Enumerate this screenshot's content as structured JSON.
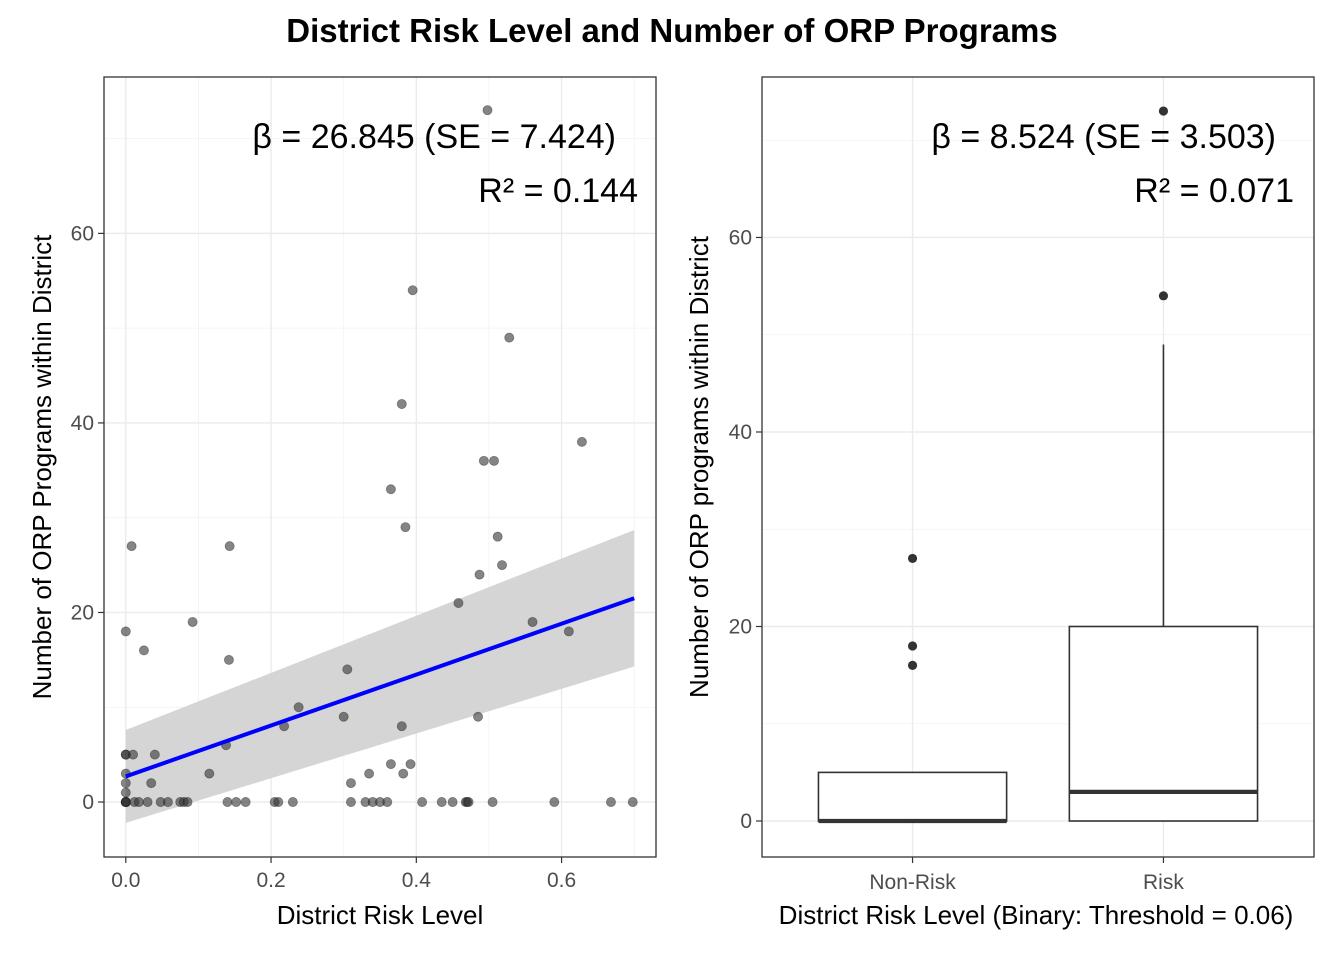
{
  "figure": {
    "title": "District Risk Level and Number of ORP Programs"
  },
  "chart_data": [
    {
      "type": "scatter",
      "xlabel": "District Risk Level",
      "ylabel": "Number of ORP Programs within District",
      "xlim": [
        -0.03,
        0.73
      ],
      "ylim": [
        -5.8,
        76.5
      ],
      "xticks": [
        0.0,
        0.2,
        0.4,
        0.6
      ],
      "xtick_labels": [
        "0.0",
        "0.2",
        "0.4",
        "0.6"
      ],
      "yticks": [
        0,
        20,
        40,
        60
      ],
      "ytick_labels": [
        "0",
        "20",
        "40",
        "60"
      ],
      "grid": true,
      "annotations": [
        "β = 26.845 (SE = 7.424)",
        "R² = 0.144"
      ],
      "fit": {
        "x": [
          0.0,
          0.7
        ],
        "y": [
          2.7,
          21.5
        ],
        "ci_lower": [
          -2.2,
          14.3
        ],
        "ci_upper": [
          7.6,
          28.7
        ],
        "color": "#0000ff",
        "ci_color": "#d3d3d3"
      },
      "point_color": "#333333",
      "points": [
        [
          0.0,
          0
        ],
        [
          0.0,
          0
        ],
        [
          0.0,
          0
        ],
        [
          0.0,
          0
        ],
        [
          0.0,
          1
        ],
        [
          0.0,
          2
        ],
        [
          0.0,
          3
        ],
        [
          0.0,
          5
        ],
        [
          0.0,
          5
        ],
        [
          0.0,
          18
        ],
        [
          0.008,
          27
        ],
        [
          0.01,
          5
        ],
        [
          0.012,
          0
        ],
        [
          0.018,
          0
        ],
        [
          0.025,
          16
        ],
        [
          0.03,
          0
        ],
        [
          0.035,
          2
        ],
        [
          0.04,
          5
        ],
        [
          0.048,
          0
        ],
        [
          0.058,
          0
        ],
        [
          0.075,
          0
        ],
        [
          0.08,
          0
        ],
        [
          0.085,
          0
        ],
        [
          0.092,
          19
        ],
        [
          0.115,
          3
        ],
        [
          0.138,
          6
        ],
        [
          0.14,
          0
        ],
        [
          0.142,
          15
        ],
        [
          0.143,
          27
        ],
        [
          0.152,
          0
        ],
        [
          0.165,
          0
        ],
        [
          0.205,
          0
        ],
        [
          0.21,
          0
        ],
        [
          0.218,
          8
        ],
        [
          0.23,
          0
        ],
        [
          0.238,
          10
        ],
        [
          0.3,
          9
        ],
        [
          0.305,
          14
        ],
        [
          0.31,
          0
        ],
        [
          0.31,
          2
        ],
        [
          0.33,
          0
        ],
        [
          0.335,
          3
        ],
        [
          0.34,
          0
        ],
        [
          0.35,
          0
        ],
        [
          0.36,
          0
        ],
        [
          0.365,
          33
        ],
        [
          0.365,
          4
        ],
        [
          0.38,
          42
        ],
        [
          0.38,
          8
        ],
        [
          0.382,
          3
        ],
        [
          0.385,
          29
        ],
        [
          0.392,
          4
        ],
        [
          0.395,
          54
        ],
        [
          0.408,
          0
        ],
        [
          0.435,
          0
        ],
        [
          0.45,
          0
        ],
        [
          0.458,
          21
        ],
        [
          0.468,
          0
        ],
        [
          0.47,
          0
        ],
        [
          0.472,
          0
        ],
        [
          0.485,
          9
        ],
        [
          0.487,
          24
        ],
        [
          0.493,
          36
        ],
        [
          0.498,
          73
        ],
        [
          0.505,
          0
        ],
        [
          0.507,
          36
        ],
        [
          0.512,
          28
        ],
        [
          0.518,
          25
        ],
        [
          0.528,
          49
        ],
        [
          0.56,
          19
        ],
        [
          0.59,
          0
        ],
        [
          0.61,
          18
        ],
        [
          0.628,
          38
        ],
        [
          0.668,
          0
        ],
        [
          0.698,
          0
        ]
      ]
    },
    {
      "type": "box",
      "xlabel": "District Risk Level (Binary: Threshold = 0.06)",
      "ylabel": "Number of ORP programs within District",
      "categories": [
        "Non-Risk",
        "Risk"
      ],
      "ylim": [
        -3.7,
        76.5
      ],
      "yticks": [
        0,
        20,
        40,
        60
      ],
      "ytick_labels": [
        "0",
        "20",
        "40",
        "60"
      ],
      "grid": true,
      "annotations": [
        "β = 8.524 (SE = 3.503)",
        "R² = 0.071"
      ],
      "boxes": [
        {
          "category": "Non-Risk",
          "whisker_low": 0,
          "q1": 0,
          "median": 0,
          "q3": 5,
          "whisker_high": 5,
          "outliers": [
            16,
            18,
            27
          ]
        },
        {
          "category": "Risk",
          "whisker_low": 0,
          "q1": 0,
          "median": 3,
          "q3": 20,
          "whisker_high": 49,
          "outliers": [
            54,
            73
          ]
        }
      ]
    }
  ]
}
